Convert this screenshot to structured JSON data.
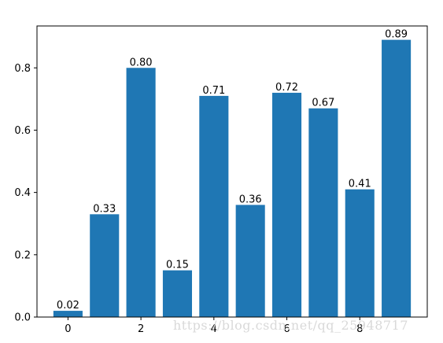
{
  "chart_data": {
    "type": "bar",
    "x": [
      0,
      1,
      2,
      3,
      4,
      5,
      6,
      7,
      8,
      9
    ],
    "values": [
      0.02,
      0.33,
      0.8,
      0.15,
      0.71,
      0.36,
      0.72,
      0.67,
      0.41,
      0.89
    ],
    "data_labels": [
      "0.02",
      "0.33",
      "0.80",
      "0.15",
      "0.71",
      "0.36",
      "0.72",
      "0.67",
      "0.41",
      "0.89"
    ],
    "x_ticks": [
      0,
      2,
      4,
      6,
      8
    ],
    "x_tick_labels": [
      "0",
      "2",
      "4",
      "6",
      "8"
    ],
    "y_ticks": [
      0.0,
      0.2,
      0.4,
      0.6,
      0.8
    ],
    "y_tick_labels": [
      "0.0",
      "0.2",
      "0.4",
      "0.6",
      "0.8"
    ],
    "xlim": [
      -0.85,
      9.85
    ],
    "ylim": [
      0,
      0.9345
    ],
    "bar_width": 0.8,
    "title": "",
    "xlabel": "",
    "ylabel": "",
    "grid": false,
    "bar_color": "#1f77b4"
  },
  "watermark": "https://blog.csdn.net/qq_25948717"
}
